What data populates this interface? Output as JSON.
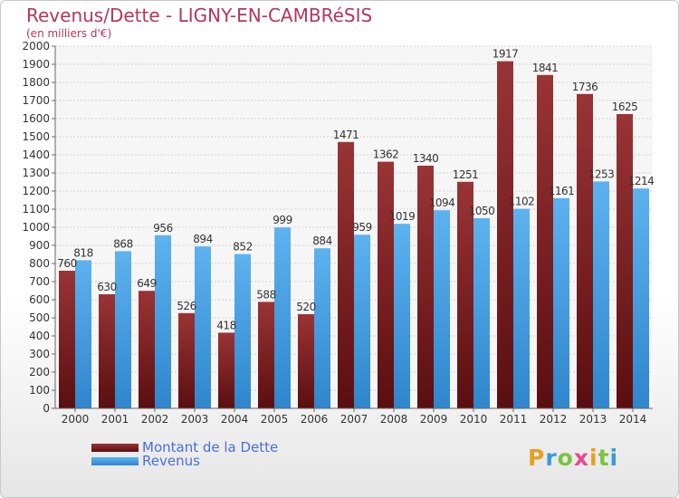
{
  "header": {
    "title": "Revenus/Dette - LIGNY-EN-CAMBRéSIS",
    "subtitle": "(en milliers d'€)"
  },
  "legend": {
    "items": [
      {
        "label": "Montant de la Dette",
        "color": "#7a1f22"
      },
      {
        "label": "Revenus",
        "color": "#4aa3e8"
      }
    ]
  },
  "logo": {
    "text": "Proxiti",
    "colors": [
      "#e8a020",
      "#3a9ad9",
      "#7cc242",
      "#e84a8a",
      "#e8a020",
      "#7cc242",
      "#3a9ad9"
    ]
  },
  "chart_data": {
    "type": "bar",
    "title": "Revenus/Dette - LIGNY-EN-CAMBRéSIS",
    "subtitle": "(en milliers d'€)",
    "categories": [
      "2000",
      "2001",
      "2002",
      "2003",
      "2004",
      "2005",
      "2006",
      "2007",
      "2008",
      "2009",
      "2010",
      "2011",
      "2012",
      "2013",
      "2014"
    ],
    "series": [
      {
        "name": "Montant de la Dette",
        "color": "#7a1f22",
        "values": [
          760,
          630,
          649,
          526,
          418,
          588,
          520,
          1471,
          1362,
          1340,
          1251,
          1917,
          1841,
          1736,
          1625
        ]
      },
      {
        "name": "Revenus",
        "color": "#4aa3e8",
        "values": [
          818,
          868,
          956,
          894,
          852,
          999,
          884,
          959,
          1019,
          1094,
          1050,
          1102,
          1161,
          1253,
          1214
        ]
      }
    ],
    "ylim": [
      0,
      2000
    ],
    "ytick_step": 100,
    "grid": true,
    "legend_position": "bottom-left"
  }
}
